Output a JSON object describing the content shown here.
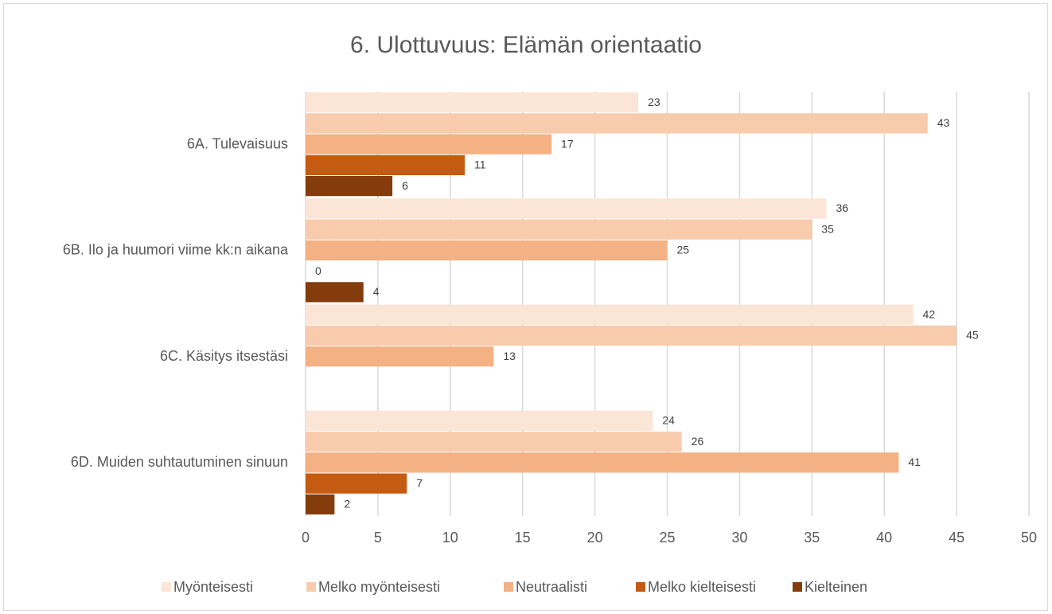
{
  "chart_data": {
    "type": "bar",
    "orientation": "horizontal",
    "title": "6. Ulottuvuus: Elämän orientaatio",
    "categories": [
      "6A. Tulevaisuus",
      "6B. Ilo ja huumori viime kk:n aikana",
      "6C. Käsitys itsestäsi",
      "6D. Muiden suhtautuminen sinuun"
    ],
    "series": [
      {
        "name": "Myönteisesti",
        "color": "#fbe5d6",
        "values": [
          23,
          36,
          42,
          24
        ]
      },
      {
        "name": "Melko myönteisesti",
        "color": "#f8cbad",
        "values": [
          43,
          35,
          45,
          26
        ]
      },
      {
        "name": "Neutraalisti",
        "color": "#f4b183",
        "values": [
          17,
          25,
          13,
          41
        ]
      },
      {
        "name": "Melko kielteisesti",
        "color": "#c55a11",
        "values": [
          11,
          0,
          null,
          7
        ]
      },
      {
        "name": "Kielteinen",
        "color": "#843c0c",
        "values": [
          6,
          4,
          null,
          2
        ]
      }
    ],
    "xlim": [
      0,
      50
    ],
    "xticks": [
      0,
      5,
      10,
      15,
      20,
      25,
      30,
      35,
      40,
      45,
      50
    ],
    "grid": true,
    "legend": "bottom"
  }
}
